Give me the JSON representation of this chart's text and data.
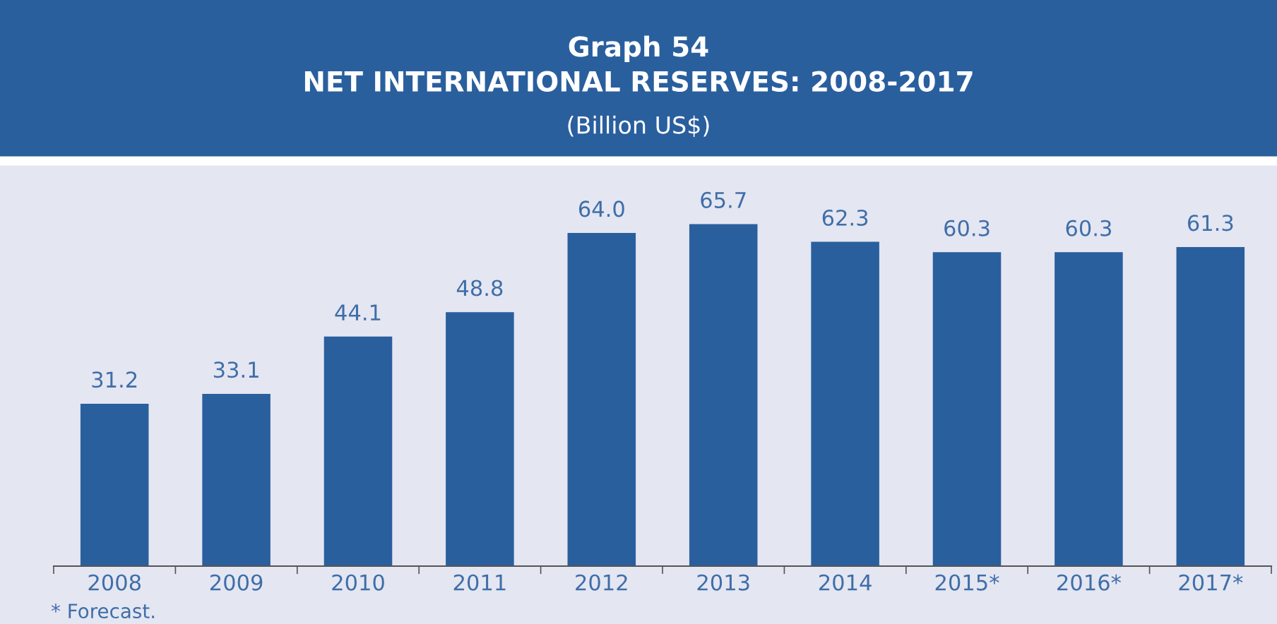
{
  "chart_data": {
    "type": "bar",
    "title": "Graph 54\nNET INTERNATIONAL RESERVES: 2008-2017",
    "subtitle": "(Billion US$)",
    "categories": [
      "2008",
      "2009",
      "2010",
      "2011",
      "2012",
      "2013",
      "2014",
      "2015*",
      "2016*",
      "2017*"
    ],
    "values": [
      31.2,
      33.1,
      44.1,
      48.8,
      64.0,
      65.7,
      62.3,
      60.3,
      60.3,
      61.3
    ],
    "value_labels": [
      "31.2",
      "33.1",
      "44.1",
      "48.8",
      "64.0",
      "65.7",
      "62.3",
      "60.3",
      "60.3",
      "61.3"
    ],
    "color": "#2a5f9e",
    "grid": false,
    "legend": false,
    "annotations": [
      "* Forecast."
    ]
  }
}
